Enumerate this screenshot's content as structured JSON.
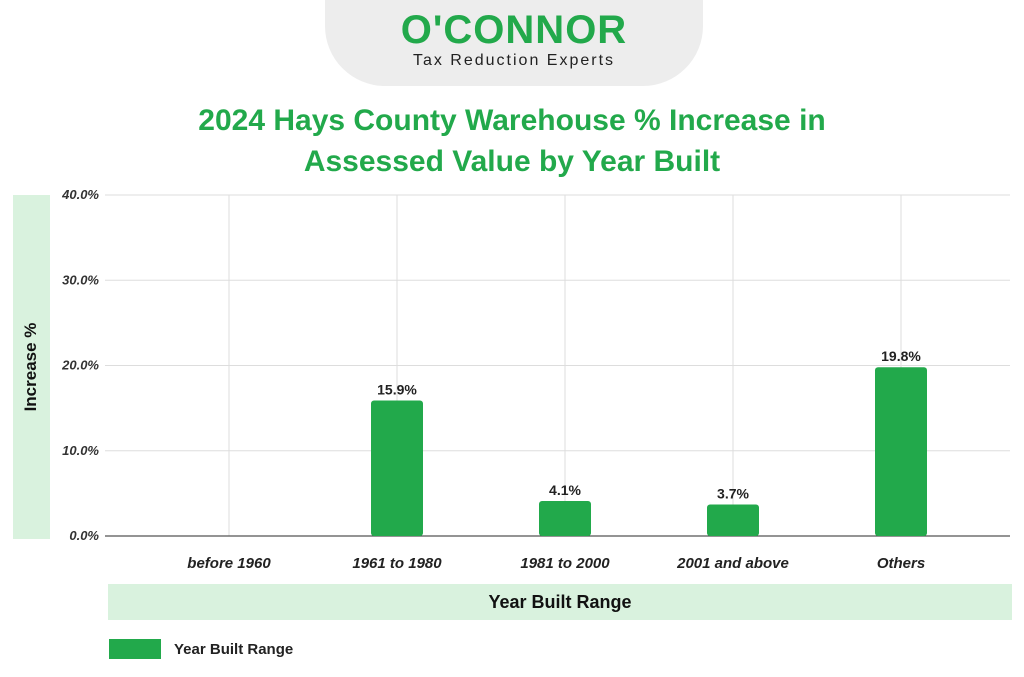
{
  "logo": {
    "name": "O'CONNOR",
    "tagline": "Tax Reduction Experts"
  },
  "chart_data": {
    "type": "bar",
    "title": "2024 Hays County Warehouse % Increase in Assessed Value by Year Built",
    "title_lines": [
      "2024 Hays County Warehouse % Increase in",
      "Assessed Value by Year Built"
    ],
    "xlabel": "Year Built Range",
    "ylabel": "Increase %",
    "categories": [
      "before 1960",
      "1961 to 1980",
      "1981 to 2000",
      "2001 and above",
      "Others"
    ],
    "series": [
      {
        "name": "Year Built Range",
        "values": [
          0,
          15.9,
          4.1,
          3.7,
          19.8
        ],
        "labels": [
          "",
          "15.9%",
          "4.1%",
          "3.7%",
          "19.8%"
        ]
      }
    ],
    "ylim": [
      0,
      40
    ],
    "yticks": [
      0,
      10,
      20,
      30,
      40
    ],
    "ytick_labels": [
      "0.0%",
      "10.0%",
      "20.0%",
      "30.0%",
      "40.0%"
    ],
    "grid": true,
    "legend_position": "bottom-left",
    "bar_color": "#22a94b"
  }
}
